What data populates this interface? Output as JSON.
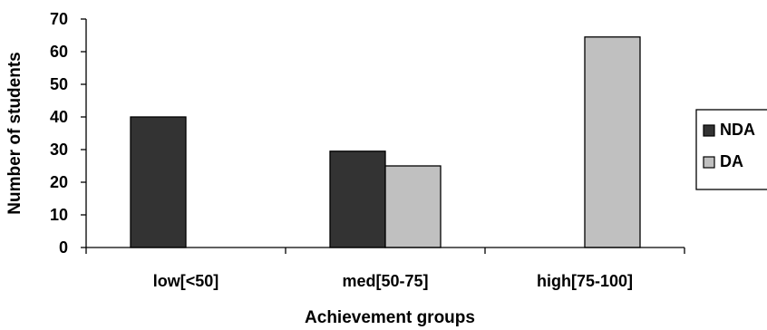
{
  "chart_data": {
    "type": "bar",
    "title": "",
    "xlabel": "Achievement groups",
    "ylabel": "Number of students",
    "categories": [
      "low[<50]",
      "med[50-75]",
      "high[75-100]"
    ],
    "series": [
      {
        "name": "NDA",
        "values": [
          40,
          29.5,
          0
        ],
        "color": "#333333"
      },
      {
        "name": "DA",
        "values": [
          0,
          25,
          64.5
        ],
        "color": "#c0c0c0"
      }
    ],
    "ylim": [
      0,
      70
    ],
    "yticks": [
      0,
      10,
      20,
      30,
      40,
      50,
      60,
      70
    ],
    "grid": false,
    "legend_position": "right"
  }
}
